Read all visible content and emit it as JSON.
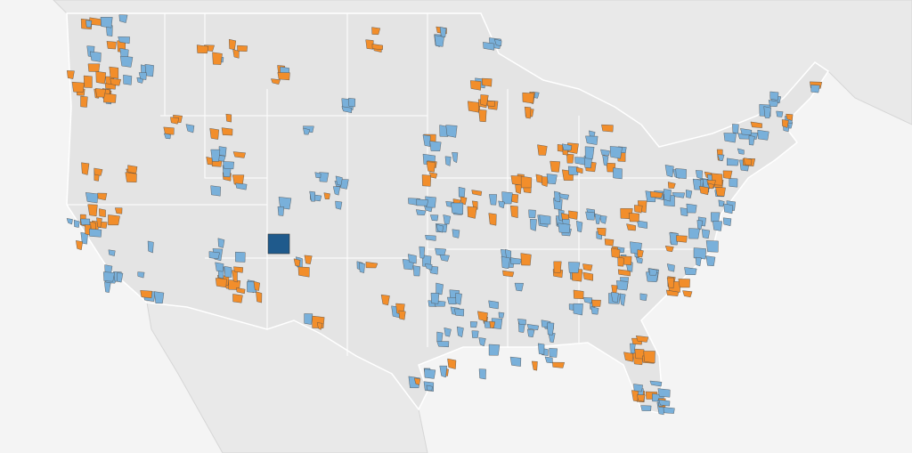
{
  "map": {
    "category_colors": [
      "#f28e2b",
      "#79b0da"
    ],
    "highlight_color": "#1f5a8c"
  }
}
